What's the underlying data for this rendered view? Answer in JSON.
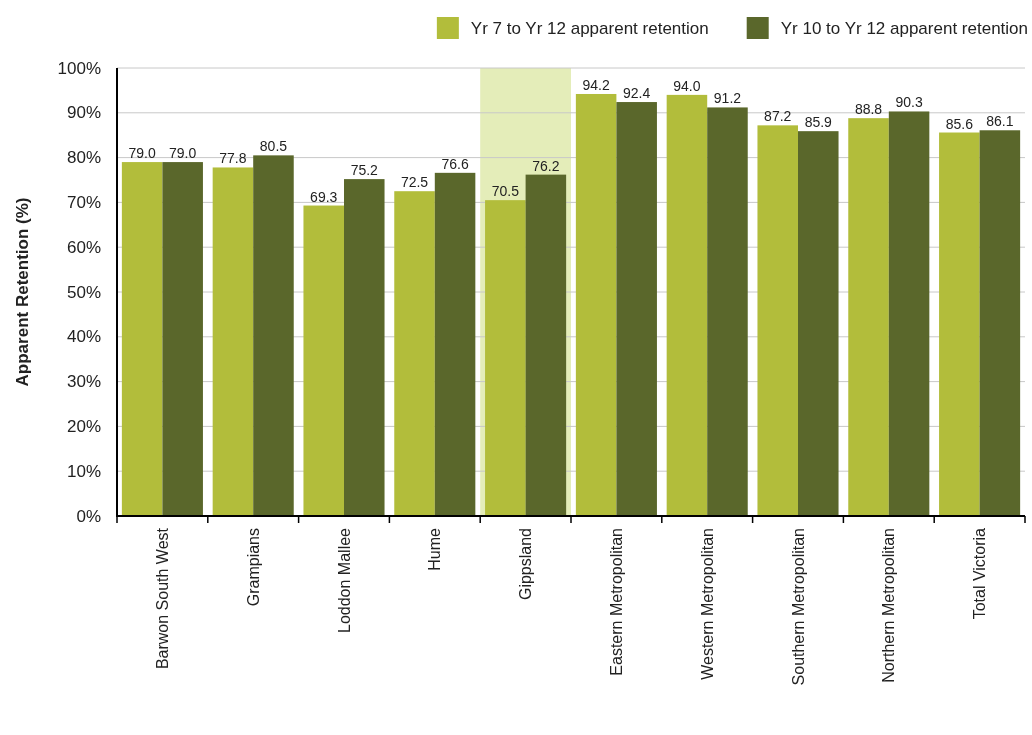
{
  "chart_data": {
    "type": "bar",
    "ylabel": "Apparent Retention (%)",
    "categories": [
      "Barwon South West",
      "Grampians",
      "Loddon Mallee",
      "Hume",
      "Gippsland",
      "Eastern Metropolitan",
      "Western Metropolitan",
      "Southern Metropolitan",
      "Northern Metropolitan",
      "Total Victoria"
    ],
    "series": [
      {
        "name": "Yr 7 to Yr 12 apparent retention",
        "color": "#b2bd3b",
        "values": [
          79.0,
          77.8,
          69.3,
          72.5,
          70.5,
          94.2,
          94.0,
          87.2,
          88.8,
          85.6
        ],
        "value_labels": [
          "79.0",
          "77.8",
          "69.3",
          "72.5",
          "70.5",
          "94.2",
          "94.0",
          "87.2",
          "88.8",
          "85.6"
        ]
      },
      {
        "name": "Yr 10 to Yr 12 apparent retention",
        "color": "#5a672b",
        "values": [
          79.0,
          80.5,
          75.2,
          76.6,
          76.2,
          92.4,
          91.2,
          85.9,
          90.3,
          86.1
        ],
        "value_labels": [
          "79.0",
          "80.5",
          "75.2",
          "76.6",
          "76.2",
          "92.4",
          "91.2",
          "85.9",
          "90.3",
          "86.1"
        ]
      }
    ],
    "ylim": [
      0,
      100
    ],
    "yticks": [
      {
        "value": 0,
        "label": "0%"
      },
      {
        "value": 10,
        "label": "10%"
      },
      {
        "value": 20,
        "label": "20%"
      },
      {
        "value": 30,
        "label": "30%"
      },
      {
        "value": 40,
        "label": "40%"
      },
      {
        "value": 50,
        "label": "50%"
      },
      {
        "value": 60,
        "label": "60%"
      },
      {
        "value": 70,
        "label": "70%"
      },
      {
        "value": 80,
        "label": "80%"
      },
      {
        "value": 90,
        "label": "90%"
      },
      {
        "value": 100,
        "label": "100%"
      }
    ],
    "bands": [
      {
        "axis": "x",
        "from": "Gippsland",
        "to": "Gippsland",
        "color": "#e4edb9"
      }
    ],
    "grid": "y",
    "legend": "top right"
  }
}
